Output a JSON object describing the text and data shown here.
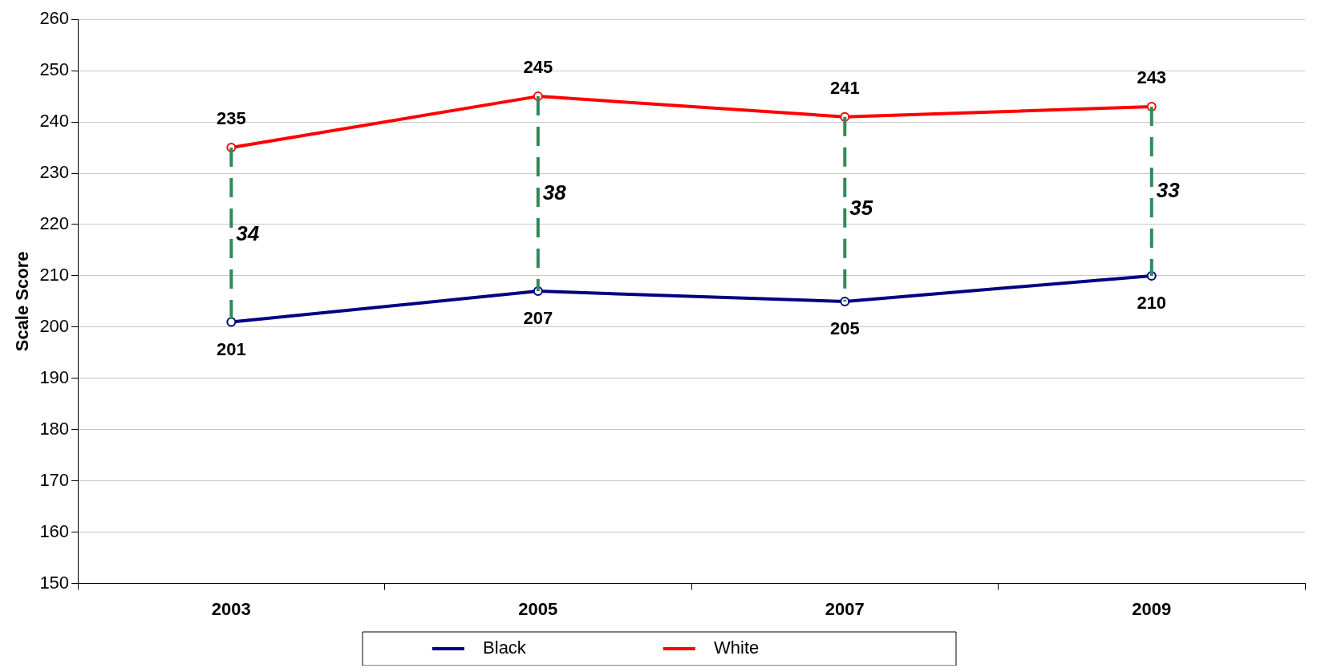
{
  "chart_data": {
    "type": "line",
    "ylabel": "Scale Score",
    "categories": [
      "2003",
      "2005",
      "2007",
      "2009"
    ],
    "series": [
      {
        "name": "Black",
        "color": "#000080",
        "values": [
          201,
          207,
          205,
          210
        ]
      },
      {
        "name": "White",
        "color": "#ff0000",
        "values": [
          235,
          245,
          241,
          243
        ]
      }
    ],
    "ylim": [
      150,
      260
    ],
    "yticks": [
      150,
      160,
      170,
      180,
      190,
      200,
      210,
      220,
      230,
      240,
      250,
      260
    ],
    "grid": "y",
    "legend": "bottom",
    "marker": "circle",
    "line_style": "solid",
    "data_labels": true,
    "annotations": [
      "34",
      "38",
      "35",
      "33"
    ]
  }
}
